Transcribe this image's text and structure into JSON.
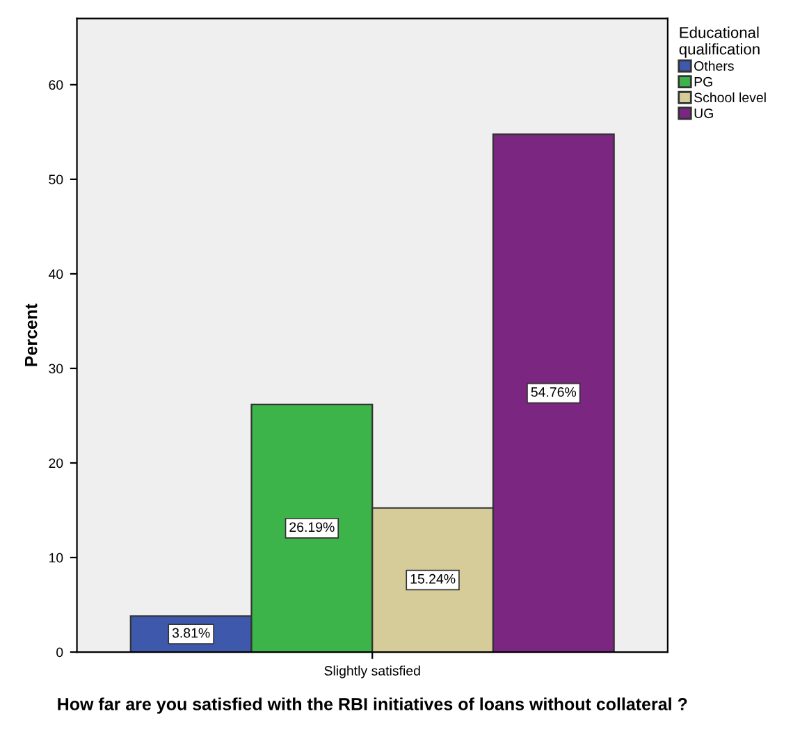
{
  "chart_data": {
    "type": "bar",
    "xlabel": "How far are you satisfied with the RBI initiatives of loans without collateral ?",
    "ylabel": "Percent",
    "legend_title": "Educational\nqualification",
    "categories": [
      "Slightly satisfied"
    ],
    "series": [
      {
        "name": "Others",
        "color": "#3e58ac",
        "values": [
          3.81
        ],
        "value_labels": [
          "3.81%"
        ]
      },
      {
        "name": "PG",
        "color": "#3cb44a",
        "values": [
          26.19
        ],
        "value_labels": [
          "26.19%"
        ]
      },
      {
        "name": "School level",
        "color": "#d5cc9a",
        "values": [
          15.24
        ],
        "value_labels": [
          "15.24%"
        ]
      },
      {
        "name": "UG",
        "color": "#7b2680",
        "values": [
          54.76
        ],
        "value_labels": [
          "54.76%"
        ]
      }
    ],
    "ylim": [
      0,
      67
    ],
    "yticks": [
      0,
      10,
      20,
      30,
      40,
      50,
      60
    ],
    "grid": false,
    "legend": "top right"
  }
}
